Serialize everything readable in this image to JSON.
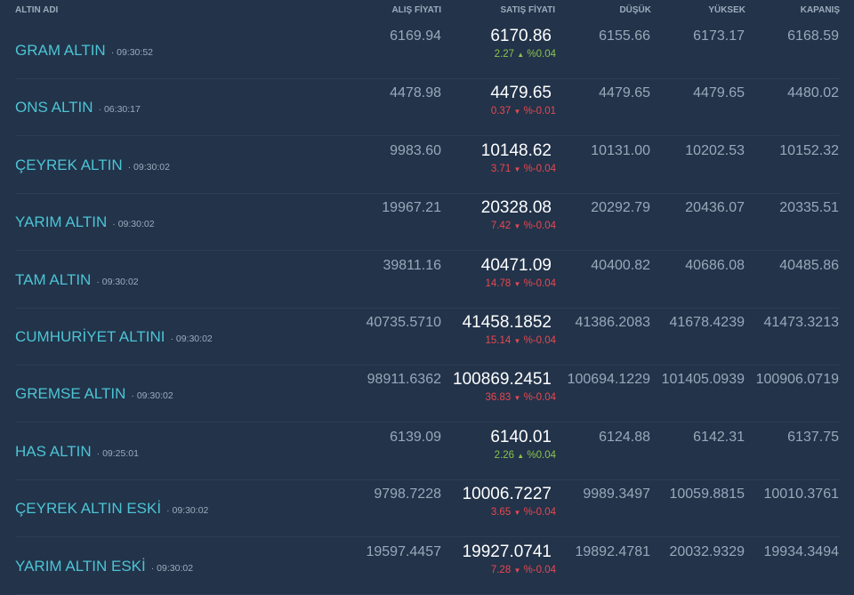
{
  "header": {
    "name": "ALTIN ADI",
    "buy": "ALIŞ FİYATI",
    "sell": "SATIŞ FİYATI",
    "low": "DÜŞÜK",
    "high": "YÜKSEK",
    "close": "KAPANIŞ"
  },
  "colors": {
    "up": "#8bc34a",
    "down": "#e8484f",
    "name": "#4cc4d4"
  },
  "rows": [
    {
      "name": "GRAM ALTIN",
      "time": "09:30:52",
      "buy": "6169.94",
      "sell": "6170.86",
      "change": "2.27",
      "pct": "%0.04",
      "dir": "up",
      "low": "6155.66",
      "high": "6173.17",
      "close": "6168.59"
    },
    {
      "name": "ONS ALTIN",
      "time": "06:30:17",
      "buy": "4478.98",
      "sell": "4479.65",
      "change": "0.37",
      "pct": "%-0.01",
      "dir": "down",
      "low": "4479.65",
      "high": "4479.65",
      "close": "4480.02"
    },
    {
      "name": "ÇEYREK ALTIN",
      "time": "09:30:02",
      "buy": "9983.60",
      "sell": "10148.62",
      "change": "3.71",
      "pct": "%-0.04",
      "dir": "down",
      "low": "10131.00",
      "high": "10202.53",
      "close": "10152.32"
    },
    {
      "name": "YARIM ALTIN",
      "time": "09:30:02",
      "buy": "19967.21",
      "sell": "20328.08",
      "change": "7.42",
      "pct": "%-0.04",
      "dir": "down",
      "low": "20292.79",
      "high": "20436.07",
      "close": "20335.51"
    },
    {
      "name": "TAM ALTIN",
      "time": "09:30:02",
      "buy": "39811.16",
      "sell": "40471.09",
      "change": "14.78",
      "pct": "%-0.04",
      "dir": "down",
      "low": "40400.82",
      "high": "40686.08",
      "close": "40485.86"
    },
    {
      "name": "CUMHURİYET ALTINI",
      "time": "09:30:02",
      "buy": "40735.5710",
      "sell": "41458.1852",
      "change": "15.14",
      "pct": "%-0.04",
      "dir": "down",
      "low": "41386.2083",
      "high": "41678.4239",
      "close": "41473.3213"
    },
    {
      "name": "GREMSE ALTIN",
      "time": "09:30:02",
      "buy": "98911.6362",
      "sell": "100869.2451",
      "change": "36.83",
      "pct": "%-0.04",
      "dir": "down",
      "low": "100694.1229",
      "high": "101405.0939",
      "close": "100906.0719"
    },
    {
      "name": "HAS ALTIN",
      "time": "09:25:01",
      "buy": "6139.09",
      "sell": "6140.01",
      "change": "2.26",
      "pct": "%0.04",
      "dir": "up",
      "low": "6124.88",
      "high": "6142.31",
      "close": "6137.75"
    },
    {
      "name": "ÇEYREK ALTIN ESKİ",
      "time": "09:30:02",
      "buy": "9798.7228",
      "sell": "10006.7227",
      "change": "3.65",
      "pct": "%-0.04",
      "dir": "down",
      "low": "9989.3497",
      "high": "10059.8815",
      "close": "10010.3761"
    },
    {
      "name": "YARIM ALTIN ESKİ",
      "time": "09:30:02",
      "buy": "19597.4457",
      "sell": "19927.0741",
      "change": "7.28",
      "pct": "%-0.04",
      "dir": "down",
      "low": "19892.4781",
      "high": "20032.9329",
      "close": "19934.3494"
    }
  ]
}
